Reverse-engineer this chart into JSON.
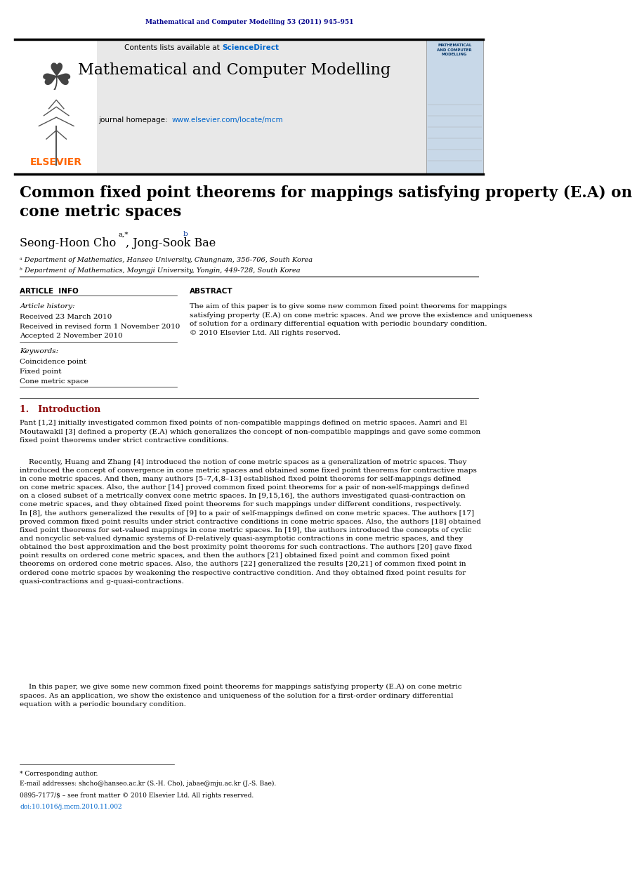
{
  "fig_width": 9.07,
  "fig_height": 12.38,
  "bg_color": "#ffffff",
  "journal_ref": "Mathematical and Computer Modelling 53 (2011) 945–951",
  "journal_ref_color": "#00008B",
  "header_bg": "#e8e8e8",
  "header_title": "Mathematical and Computer Modelling",
  "header_contents": "Contents lists available at",
  "header_sciencedirect": "ScienceDirect",
  "header_sciencedirect_color": "#0066cc",
  "header_homepage": "journal homepage:",
  "header_url": "www.elsevier.com/locate/mcm",
  "header_url_color": "#0066cc",
  "elsevier_color": "#FF6600",
  "paper_title": "Common fixed point theorems for mappings satisfying property (E.A) on\ncone metric spaces",
  "authors": "Seong-Hoon Cho",
  "authors2": ", Jong-Sook Bae",
  "author_super": "a,*",
  "author_super2": "b",
  "affil_a": "ᵃ Department of Mathematics, Hanseo University, Chungnam, 356-706, South Korea",
  "affil_b": "ᵇ Department of Mathematics, Moyngji University, Yongin, 449-728, South Korea",
  "section_article_info": "ARTICLE  INFO",
  "section_abstract": "ABSTRACT",
  "article_history_label": "Article history:",
  "received": "Received 23 March 2010",
  "revised": "Received in revised form 1 November 2010",
  "accepted": "Accepted 2 November 2010",
  "keywords_label": "Keywords:",
  "keyword1": "Coincidence point",
  "keyword2": "Fixed point",
  "keyword3": "Cone metric space",
  "abstract_text": "The aim of this paper is to give some new common fixed point theorems for mappings\nsatisfying property (E.A) on cone metric spaces. And we prove the existence and uniqueness\nof solution for a ordinary differential equation with periodic boundary condition.\n© 2010 Elsevier Ltd. All rights reserved.",
  "section1_title": "1.   Introduction",
  "intro_para1": "Pant [1,2] initially investigated common fixed points of non-compatible mappings defined on metric spaces. Aamri and El\nMoutawakil [3] defined a property (E.A) which generalizes the concept of non-compatible mappings and gave some common\nfixed point theorems under strict contractive conditions.",
  "intro_para2": "Recently, Huang and Zhang [4] introduced the notion of cone metric spaces as a generalization of metric spaces. They\nintroduced the concept of convergence in cone metric spaces and obtained some fixed point theorems for contractive maps\nin cone metric spaces. And then, many authors [5–7,4,8–13] established fixed point theorems for self-mappings defined\non cone metric spaces. Also, the author [14] proved common fixed point theorems for a pair of non-self-mappings defined\non a closed subset of a metrically convex cone metric spaces. In [9,15,16], the authors investigated quasi-contraction on\ncone metric spaces, and they obtained fixed point theorems for such mappings under different conditions, respectively.\nIn [8], the authors generalized the results of [9] to a pair of self-mappings defined on cone metric spaces. The authors [17]\nproved common fixed point results under strict contractive conditions in cone metric spaces. Also, the authors [18] obtained\nfixed point theorems for set-valued mappings in cone metric spaces. In [19], the authors introduced the concepts of cyclic\nand noncyclic set-valued dynamic systems of D-relatively quasi-asymptotic contractions in cone metric spaces, and they\nobtained the best approximation and the best proximity point theorems for such contractions. The authors [20] gave fixed\npoint results on ordered cone metric spaces, and then the authors [21] obtained fixed point and common fixed point\ntheorems on ordered cone metric spaces. Also, the authors [22] generalized the results [20,21] of common fixed point in\nordered cone metric spaces by weakening the respective contractive condition. And they obtained fixed point results for\nquasi-contractions and g-quasi-contractions.",
  "intro_para3": "In this paper, we give some new common fixed point theorems for mappings satisfying property (E.A) on cone metric\nspaces. As an application, we show the existence and uniqueness of the solution for a first-order ordinary differential\nequation with a periodic boundary condition.",
  "footnote_star": "* Corresponding author.",
  "footnote_email": "E-mail addresses: shcho@hanseo.ac.kr (S.-H. Cho), jabae@mju.ac.kr (J.-S. Bae).",
  "footnote_issn": "0895-7177/$ – see front matter © 2010 Elsevier Ltd. All rights reserved.",
  "footnote_doi": "doi:10.1016/j.mcm.2010.11.002",
  "footnote_doi_color": "#0066cc"
}
